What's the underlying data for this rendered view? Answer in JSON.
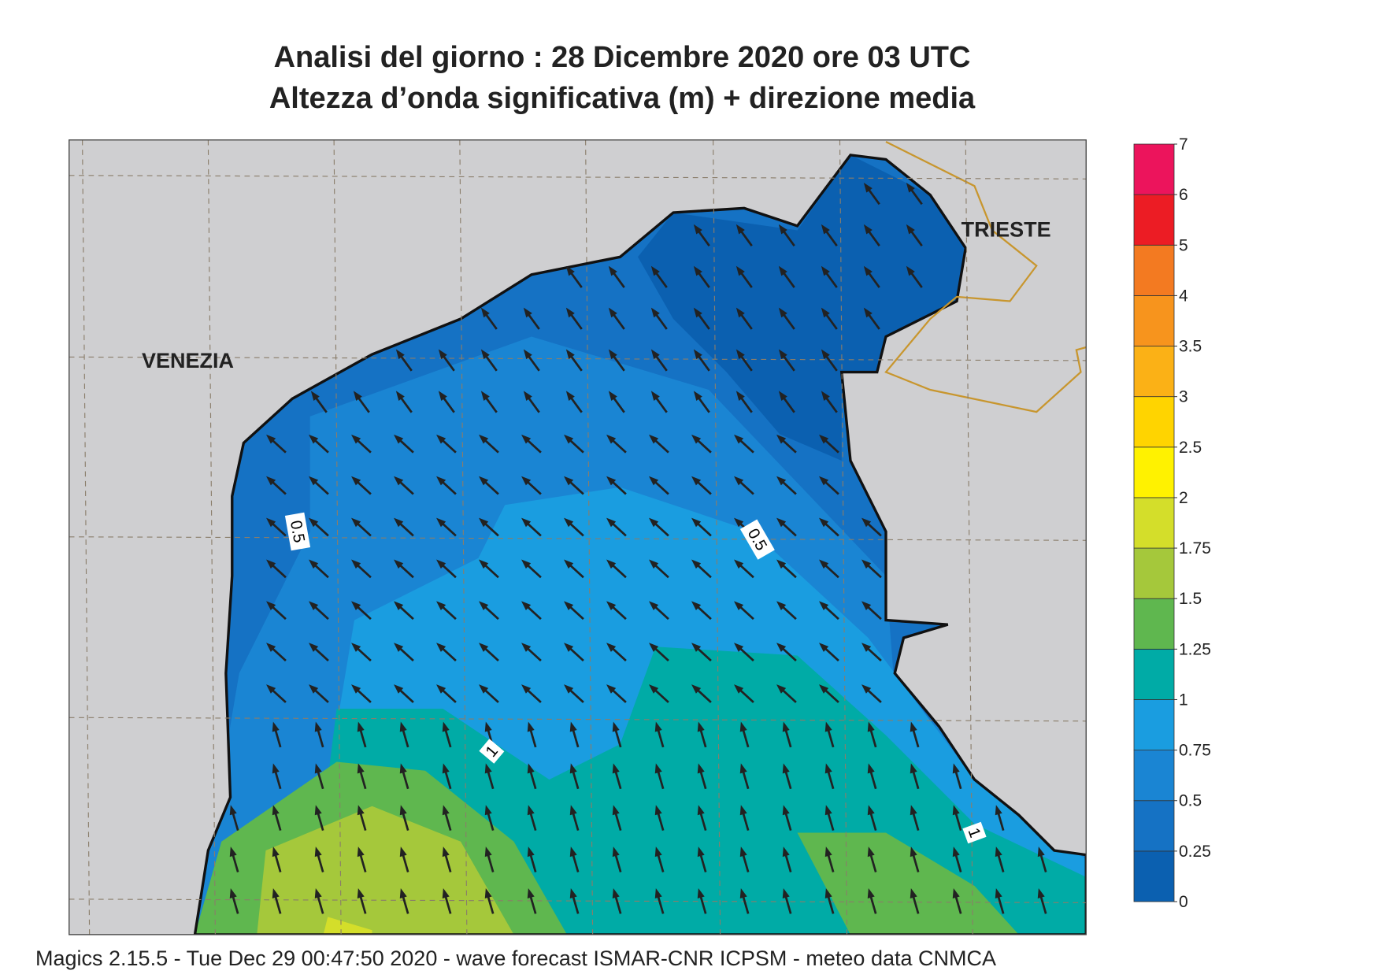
{
  "header": {
    "title": "Analisi del giorno :  28 Dicembre  2020   ore 03 UTC",
    "subtitle": "Altezza d’onda significativa (m) + direzione media"
  },
  "map": {
    "places": [
      "VENEZIA",
      "TRIESTE"
    ],
    "contour_labels": [
      "0.5",
      "0.5",
      "1",
      "1"
    ]
  },
  "colorbar": {
    "levels": [
      0,
      0.25,
      0.5,
      0.75,
      1,
      1.25,
      1.5,
      1.75,
      2,
      2.5,
      3,
      3.5,
      4,
      5,
      6,
      7
    ],
    "colors": [
      "#0b60b0",
      "#1572c4",
      "#1a85d3",
      "#1a9de0",
      "#00aba6",
      "#5fb74f",
      "#a5c83b",
      "#d4de2a",
      "#fff200",
      "#ffd400",
      "#fbb116",
      "#f7941d",
      "#f37a21",
      "#ec1c24",
      "#ec145c"
    ]
  },
  "footer": "Magics 2.15.5 - Tue Dec 29 00:47:50 2020 - wave forecast  ISMAR-CNR  ICPSM - meteo data   CNMCA"
}
